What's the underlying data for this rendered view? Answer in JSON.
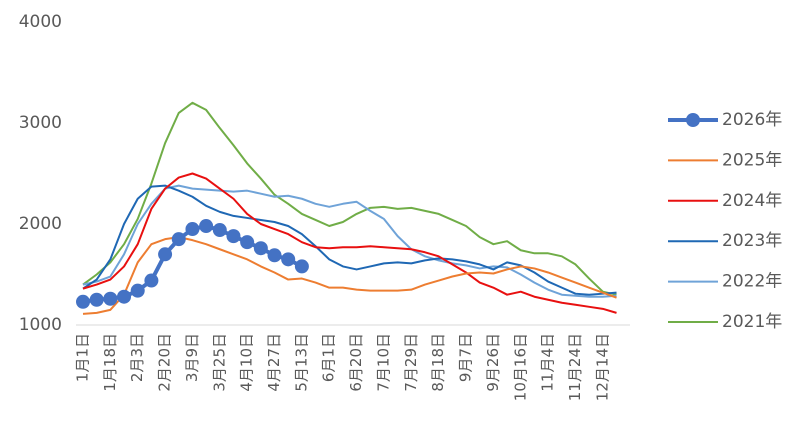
{
  "chart_data": {
    "type": "line",
    "categories": [
      "1月1日",
      null,
      "1月18日",
      null,
      "2月3日",
      null,
      "2月20日",
      null,
      "3月9日",
      null,
      "3月25日",
      null,
      "4月10日",
      null,
      "4月27日",
      null,
      "5月13日",
      null,
      "6月1日",
      null,
      "6月20日",
      null,
      "7月10日",
      null,
      "7月29日",
      null,
      "8月18日",
      null,
      "9月7日",
      null,
      "9月26日",
      null,
      "10月16日",
      null,
      "11月4日",
      null,
      "11月24日",
      null,
      "12月14日",
      null
    ],
    "series": [
      {
        "name": "2026年",
        "color": "#4472c4",
        "marker": true,
        "values": [
          1230,
          1250,
          1260,
          1280,
          1340,
          1440,
          1700,
          1850,
          1950,
          1980,
          1940,
          1880,
          1820,
          1760,
          1690,
          1650,
          1580,
          null,
          null,
          null,
          null,
          null,
          null,
          null,
          null,
          null,
          null,
          null,
          null,
          null,
          null,
          null,
          null,
          null,
          null,
          null,
          null,
          null,
          null,
          null
        ]
      },
      {
        "name": "2025年",
        "color": "#ed7d31",
        "values": [
          1110,
          1120,
          1150,
          1300,
          1620,
          1800,
          1850,
          1870,
          1840,
          1800,
          1750,
          1700,
          1650,
          1580,
          1520,
          1450,
          1460,
          1420,
          1370,
          1370,
          1350,
          1340,
          1340,
          1340,
          1350,
          1400,
          1440,
          1480,
          1510,
          1520,
          1510,
          1550,
          1580,
          1560,
          1520,
          1470,
          1420,
          1370,
          1320,
          1270
        ]
      },
      {
        "name": "2024年",
        "color": "#e81010",
        "values": [
          1360,
          1400,
          1450,
          1580,
          1800,
          2150,
          2350,
          2460,
          2500,
          2450,
          2350,
          2250,
          2100,
          2000,
          1950,
          1900,
          1820,
          1770,
          1760,
          1770,
          1770,
          1780,
          1770,
          1760,
          1750,
          1720,
          1680,
          1600,
          1520,
          1420,
          1370,
          1300,
          1330,
          1280,
          1250,
          1220,
          1200,
          1180,
          1160,
          1120
        ]
      },
      {
        "name": "2023年",
        "color": "#1f68b4",
        "values": [
          1360,
          1450,
          1650,
          2000,
          2250,
          2370,
          2380,
          2330,
          2270,
          2180,
          2120,
          2080,
          2060,
          2040,
          2020,
          1980,
          1900,
          1780,
          1650,
          1580,
          1550,
          1580,
          1610,
          1620,
          1610,
          1640,
          1660,
          1650,
          1630,
          1600,
          1550,
          1620,
          1590,
          1520,
          1430,
          1370,
          1310,
          1300,
          1310,
          1320
        ]
      },
      {
        "name": "2022年",
        "color": "#6fa3d8",
        "values": [
          1400,
          1430,
          1480,
          1700,
          2000,
          2200,
          2350,
          2380,
          2350,
          2340,
          2330,
          2320,
          2330,
          2300,
          2270,
          2280,
          2250,
          2200,
          2170,
          2200,
          2220,
          2130,
          2050,
          1880,
          1750,
          1680,
          1640,
          1610,
          1590,
          1560,
          1580,
          1570,
          1500,
          1420,
          1350,
          1300,
          1290,
          1280,
          1280,
          1290
        ]
      },
      {
        "name": "2021年",
        "color": "#70ad47",
        "values": [
          1400,
          1500,
          1620,
          1800,
          2050,
          2400,
          2800,
          3100,
          3200,
          3130,
          2950,
          2780,
          2600,
          2450,
          2290,
          2200,
          2100,
          2040,
          1980,
          2020,
          2100,
          2160,
          2170,
          2150,
          2160,
          2130,
          2100,
          2040,
          1980,
          1870,
          1800,
          1830,
          1740,
          1710,
          1710,
          1680,
          1600,
          1460,
          1330,
          1300
        ]
      }
    ],
    "ylim": [
      1000,
      4000
    ],
    "yticks": [
      1000,
      2000,
      3000,
      4000
    ],
    "grid": false,
    "legend": "right"
  }
}
